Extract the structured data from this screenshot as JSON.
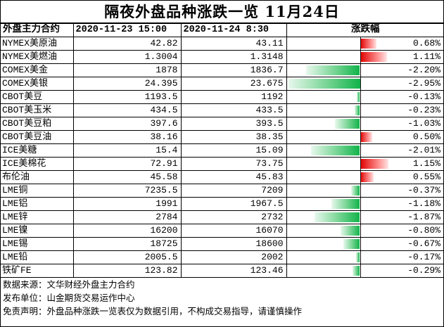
{
  "title": "隔夜外盘品种涨跌一览 11月24日",
  "header": {
    "contract": "外盘主力合约",
    "date1": "2020-11-23 15:00",
    "date2": "2020-11-24 8:30",
    "change": "涨跌幅"
  },
  "colors": {
    "up": "#e10000",
    "down": "#11b34a"
  },
  "rows": [
    {
      "name": "NYMEX美原油",
      "v1": "42.82",
      "v2": "43.11",
      "pct": "0.68%",
      "value": 0.68
    },
    {
      "name": "NYMEX美燃油",
      "v1": "1.3004",
      "v2": "1.3148",
      "pct": "1.11%",
      "value": 1.11
    },
    {
      "name": "COMEX美金",
      "v1": "1878",
      "v2": "1836.7",
      "pct": "-2.20%",
      "value": -2.2
    },
    {
      "name": "COMEX美银",
      "v1": "24.395",
      "v2": "23.675",
      "pct": "-2.95%",
      "value": -2.95
    },
    {
      "name": "CBOT美豆",
      "v1": "1193.5",
      "v2": "1192",
      "pct": "-0.13%",
      "value": -0.13
    },
    {
      "name": "CBOT美玉米",
      "v1": "434.5",
      "v2": "433.5",
      "pct": "-0.23%",
      "value": -0.23
    },
    {
      "name": "CBOT美豆粕",
      "v1": "397.6",
      "v2": "393.5",
      "pct": "-1.03%",
      "value": -1.03
    },
    {
      "name": "CBOT美豆油",
      "v1": "38.16",
      "v2": "38.35",
      "pct": "0.50%",
      "value": 0.5
    },
    {
      "name": "ICE美糖",
      "v1": "15.4",
      "v2": "15.09",
      "pct": "-2.01%",
      "value": -2.01
    },
    {
      "name": "ICE美棉花",
      "v1": "72.91",
      "v2": "73.75",
      "pct": "1.15%",
      "value": 1.15
    },
    {
      "name": "布伦油",
      "v1": "45.58",
      "v2": "45.83",
      "pct": "0.55%",
      "value": 0.55
    },
    {
      "name": "LME铜",
      "v1": "7235.5",
      "v2": "7209",
      "pct": "-0.37%",
      "value": -0.37
    },
    {
      "name": "LME铝",
      "v1": "1991",
      "v2": "1967.5",
      "pct": "-1.18%",
      "value": -1.18
    },
    {
      "name": "LME锌",
      "v1": "2784",
      "v2": "2732",
      "pct": "-1.87%",
      "value": -1.87
    },
    {
      "name": "LME镍",
      "v1": "16200",
      "v2": "16070",
      "pct": "-0.80%",
      "value": -0.8
    },
    {
      "name": "LME锡",
      "v1": "18725",
      "v2": "18600",
      "pct": "-0.67%",
      "value": -0.67
    },
    {
      "name": "LME铅",
      "v1": "2005.5",
      "v2": "2002",
      "pct": "-0.17%",
      "value": -0.17
    },
    {
      "name": "铁矿FE",
      "v1": "123.82",
      "v2": "123.46",
      "pct": "-0.29%",
      "value": -0.29
    }
  ],
  "notes": [
    "数据来源：文华财经外盘主力合约",
    "发布单位：山金期货交易运作中心",
    "免责声明：外盘品种涨跌一览表仅为数据引用，不构成交易指导，请谨慎操作"
  ]
}
